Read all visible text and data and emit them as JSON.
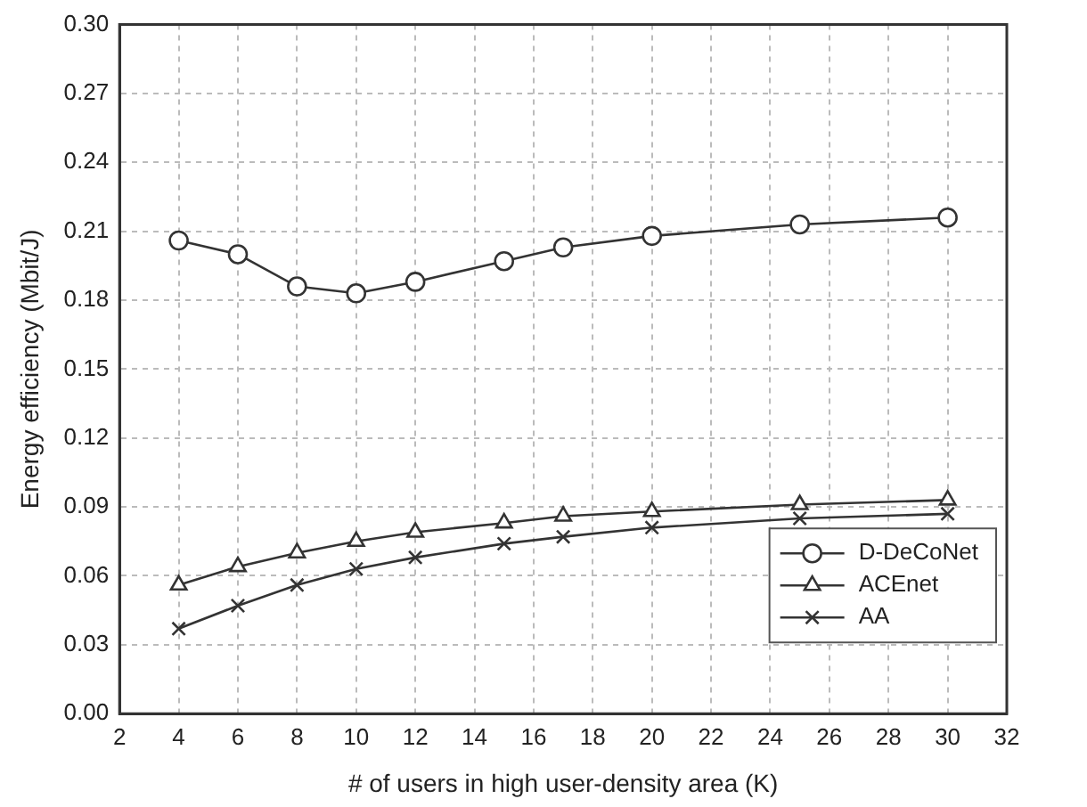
{
  "chart_data": {
    "type": "line",
    "xlabel": "# of users in high user-density area (K)",
    "ylabel": "Energy efficiency (Mbit/J)",
    "x": [
      4,
      6,
      8,
      10,
      12,
      15,
      17,
      20,
      25,
      30
    ],
    "series": [
      {
        "name": "D-DeCoNet",
        "color": "#333333",
        "marker": "circle",
        "values": [
          0.206,
          0.2,
          0.186,
          0.183,
          0.188,
          0.197,
          0.203,
          0.208,
          0.213,
          0.216
        ]
      },
      {
        "name": "ACEnet",
        "color": "#333333",
        "marker": "triangle",
        "values": [
          0.056,
          0.064,
          0.07,
          0.075,
          0.079,
          0.083,
          0.086,
          0.088,
          0.091,
          0.093
        ]
      },
      {
        "name": "AA",
        "color": "#333333",
        "marker": "cross",
        "values": [
          0.037,
          0.047,
          0.056,
          0.063,
          0.068,
          0.074,
          0.077,
          0.081,
          0.085,
          0.087
        ]
      }
    ],
    "xlim": [
      2,
      32
    ],
    "xticks": [
      2,
      4,
      6,
      8,
      10,
      12,
      14,
      16,
      18,
      20,
      22,
      24,
      26,
      28,
      30,
      32
    ],
    "ylim": [
      0,
      0.3
    ],
    "yticks": [
      {
        "value": 0,
        "label": "0.00"
      },
      {
        "value": 0.03,
        "label": "0.03"
      },
      {
        "value": 0.06,
        "label": "0.06"
      },
      {
        "value": 0.09,
        "label": "0.09"
      },
      {
        "value": 0.12,
        "label": "0.12"
      },
      {
        "value": 0.15,
        "label": "0.15"
      },
      {
        "value": 0.18,
        "label": "0.18"
      },
      {
        "value": 0.21,
        "label": "0.21"
      },
      {
        "value": 0.24,
        "label": "0.24"
      },
      {
        "value": 0.27,
        "label": "0.27"
      },
      {
        "value": 0.3,
        "label": "0.30"
      }
    ],
    "grid": true,
    "legend": "bottom right",
    "line_style": "solid"
  }
}
